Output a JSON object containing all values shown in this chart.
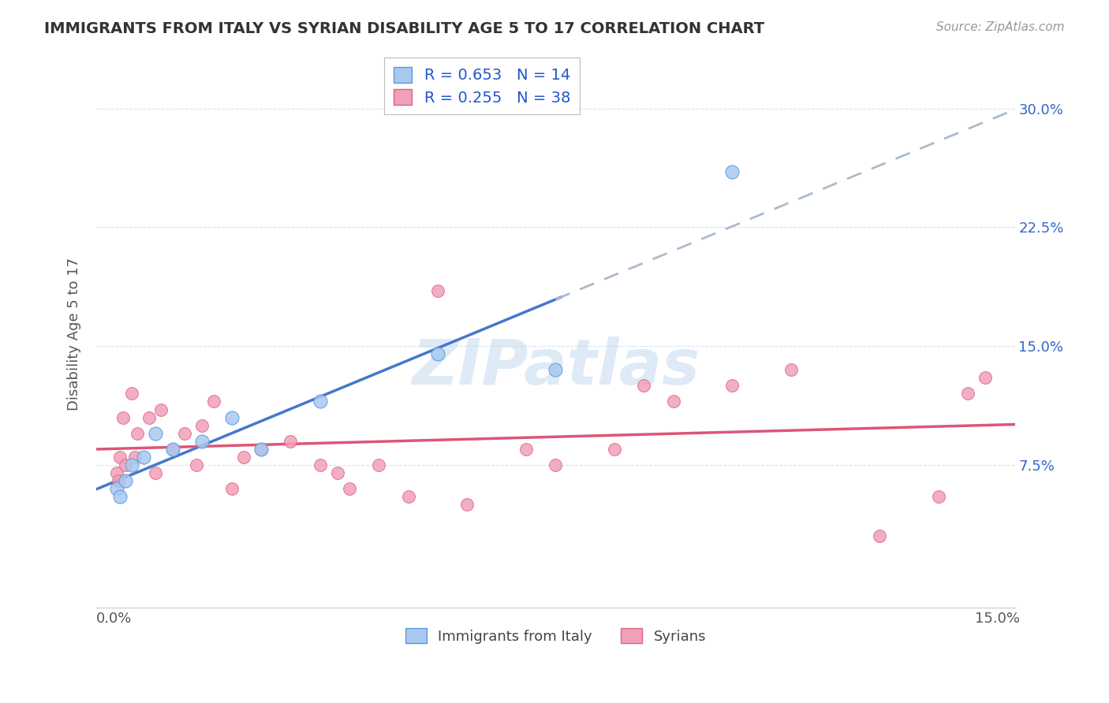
{
  "title": "IMMIGRANTS FROM ITALY VS SYRIAN DISABILITY AGE 5 TO 17 CORRELATION CHART",
  "source": "Source: ZipAtlas.com",
  "ylabel": "Disability Age 5 to 17",
  "legend_labels": [
    "Immigrants from Italy",
    "Syrians"
  ],
  "legend_r": [
    0.653,
    0.255
  ],
  "legend_n": [
    14,
    38
  ],
  "blue_fill": "#A8C8F0",
  "blue_edge": "#5599DD",
  "pink_fill": "#F0A0B8",
  "pink_edge": "#E06080",
  "blue_line_color": "#4477CC",
  "pink_line_color": "#DD5577",
  "gray_dash_color": "#AABBCC",
  "watermark_color": "#C8DCF0",
  "italy_x": [
    0.05,
    0.1,
    0.2,
    0.3,
    0.5,
    0.7,
    1.0,
    1.5,
    2.0,
    2.5,
    3.5,
    5.5,
    7.5,
    10.5
  ],
  "italy_y": [
    6.0,
    5.5,
    6.5,
    7.5,
    8.0,
    9.5,
    8.5,
    9.0,
    10.5,
    8.5,
    11.5,
    14.5,
    13.5,
    26.0
  ],
  "syria_x": [
    0.05,
    0.08,
    0.1,
    0.15,
    0.2,
    0.3,
    0.35,
    0.4,
    0.6,
    0.7,
    0.8,
    1.0,
    1.2,
    1.4,
    1.5,
    1.7,
    2.0,
    2.2,
    2.5,
    3.0,
    3.5,
    3.8,
    4.0,
    4.5,
    5.0,
    5.5,
    6.0,
    7.0,
    7.5,
    8.5,
    9.0,
    9.5,
    10.5,
    11.5,
    13.0,
    14.0,
    14.5,
    14.8
  ],
  "syria_y": [
    7.0,
    6.5,
    8.0,
    10.5,
    7.5,
    12.0,
    8.0,
    9.5,
    10.5,
    7.0,
    11.0,
    8.5,
    9.5,
    7.5,
    10.0,
    11.5,
    6.0,
    8.0,
    8.5,
    9.0,
    7.5,
    7.0,
    6.0,
    7.5,
    5.5,
    18.5,
    5.0,
    8.5,
    7.5,
    8.5,
    12.5,
    11.5,
    12.5,
    13.5,
    3.0,
    5.5,
    12.0,
    13.0
  ],
  "xlim_min": 0,
  "xlim_max": 15.0,
  "ylim_min": 0,
  "ylim_max": 32.0,
  "x_ticks": [
    0.0,
    5.0,
    10.0,
    15.0
  ],
  "y_ticks": [
    7.5,
    15.0,
    22.5,
    30.0
  ]
}
